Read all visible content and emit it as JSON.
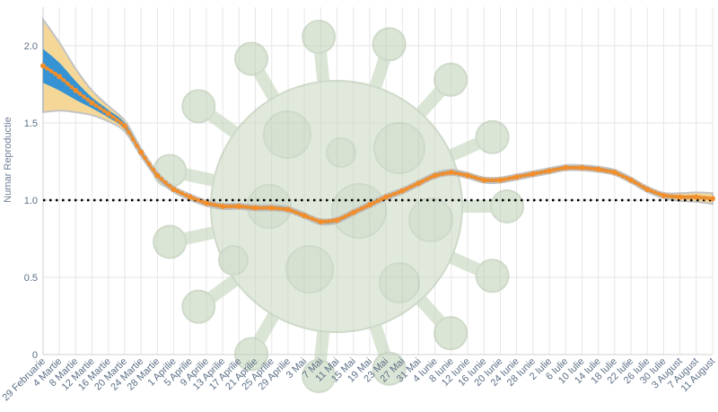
{
  "chart_data": {
    "type": "line",
    "title": "",
    "xlabel": "",
    "ylabel": "Numar Reproductie",
    "ylim": [
      0,
      2.25
    ],
    "y_ticks": [
      0,
      0.5,
      1.0,
      1.5,
      2.0
    ],
    "y_tick_labels": [
      "0",
      "0.5",
      "1.0",
      "1.5",
      "2.0"
    ],
    "grid": true,
    "reference_line": {
      "y": 1.0,
      "style": "dotted",
      "color": "#000000"
    },
    "x_tick_labels": [
      "29 Februarie",
      "4 Martie",
      "8 Martie",
      "12 Martie",
      "16 Martie",
      "20 Martie",
      "24 Martie",
      "28 Martie",
      "1 Aprilie",
      "5 Aprilie",
      "9 Aprilie",
      "13 Aprilie",
      "17 Aprilie",
      "21 Aprilie",
      "25 Aprilie",
      "29 Aprilie",
      "3 Mai",
      "7 Mai",
      "11 Mai",
      "15 Mai",
      "19 Mai",
      "23 Mai",
      "27 Mai",
      "31 Mai",
      "4 Iunie",
      "8 Iunie",
      "12 Iunie",
      "16 Iunie",
      "20 Iunie",
      "24 Iunie",
      "28 Iunie",
      "2 Iulie",
      "6 Iulie",
      "10 Iulie",
      "14 Iulie",
      "18 Iulie",
      "22 Iulie",
      "26 Iulie",
      "30 Iulie",
      "3 August",
      "7 August",
      "11 August"
    ],
    "series": [
      {
        "color": "#f28e2b",
        "x_index": [
          0,
          1,
          2,
          3,
          4,
          5,
          6,
          7,
          8,
          9,
          10,
          11,
          12,
          13,
          14,
          15,
          16,
          17,
          18,
          19,
          20,
          21,
          22,
          23,
          24,
          25,
          26,
          27,
          28,
          29,
          30,
          31,
          32,
          33,
          34,
          35,
          36,
          37,
          38,
          39,
          40,
          41
        ],
        "values": [
          1.87,
          1.8,
          1.71,
          1.63,
          1.56,
          1.48,
          1.31,
          1.16,
          1.07,
          1.02,
          0.98,
          0.96,
          0.96,
          0.95,
          0.95,
          0.94,
          0.9,
          0.86,
          0.87,
          0.92,
          0.97,
          1.02,
          1.06,
          1.11,
          1.16,
          1.18,
          1.16,
          1.13,
          1.13,
          1.15,
          1.17,
          1.19,
          1.21,
          1.21,
          1.2,
          1.18,
          1.13,
          1.07,
          1.03,
          1.02,
          1.02,
          1.01
        ],
        "inner_band_half_width": [
          0.11,
          0.09,
          0.06,
          0.035,
          0.025,
          0.02,
          0.015,
          0.012,
          0.01,
          0.01,
          0.01,
          0.01,
          0.01,
          0.01,
          0.01,
          0.01,
          0.01,
          0.01,
          0.01,
          0.01,
          0.01,
          0.01,
          0.01,
          0.01,
          0.01,
          0.01,
          0.01,
          0.01,
          0.01,
          0.01,
          0.01,
          0.01,
          0.01,
          0.01,
          0.01,
          0.01,
          0.01,
          0.01,
          0.01,
          0.01,
          0.01,
          0.01
        ],
        "outer_band_half_width": [
          0.3,
          0.22,
          0.14,
          0.08,
          0.05,
          0.035,
          0.025,
          0.02,
          0.018,
          0.018,
          0.017,
          0.017,
          0.017,
          0.017,
          0.017,
          0.017,
          0.017,
          0.017,
          0.017,
          0.017,
          0.017,
          0.017,
          0.017,
          0.017,
          0.017,
          0.017,
          0.017,
          0.017,
          0.017,
          0.017,
          0.017,
          0.017,
          0.017,
          0.017,
          0.017,
          0.017,
          0.017,
          0.017,
          0.017,
          0.025,
          0.03,
          0.035
        ]
      }
    ],
    "band_colors": {
      "outer": "#f5d48c",
      "inner": "#2b8fd6",
      "edge": "#bdbdbd"
    }
  }
}
